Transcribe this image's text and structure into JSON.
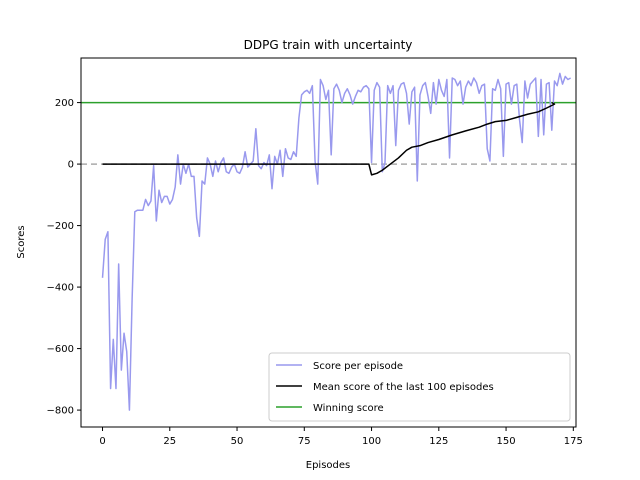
{
  "chart_data": {
    "type": "line",
    "title": "DDPG train with uncertainty",
    "xlabel": "Episodes",
    "ylabel": "Scores",
    "xlim": [
      -8,
      176
    ],
    "ylim": [
      -855,
      345
    ],
    "xticks": [
      0,
      25,
      50,
      75,
      100,
      125,
      150,
      175
    ],
    "xtick_labels": [
      "0",
      "25",
      "50",
      "75",
      "100",
      "125",
      "150",
      "175"
    ],
    "yticks": [
      -800,
      -600,
      -400,
      -200,
      0,
      200
    ],
    "ytick_labels": [
      "−800",
      "−600",
      "−400",
      "−200",
      "0",
      "200"
    ],
    "grid": false,
    "legend_position": "lower-right",
    "series": [
      {
        "name": "Score per episode",
        "color": "#9999ee",
        "x_start": 0,
        "values": [
          -370,
          -245,
          -220,
          -730,
          -570,
          -730,
          -325,
          -670,
          -550,
          -610,
          -800,
          -440,
          -155,
          -150,
          -150,
          -150,
          -115,
          -135,
          -120,
          -5,
          -185,
          -85,
          -125,
          -105,
          -105,
          -130,
          -115,
          -75,
          30,
          -65,
          0,
          -30,
          0,
          -40,
          -40,
          -175,
          -235,
          -55,
          -65,
          20,
          0,
          -40,
          10,
          -25,
          5,
          20,
          -25,
          -30,
          -10,
          0,
          -25,
          -30,
          -10,
          40,
          -10,
          0,
          10,
          115,
          -5,
          -15,
          5,
          -5,
          30,
          -80,
          25,
          0,
          45,
          -40,
          50,
          20,
          15,
          40,
          25,
          150,
          225,
          235,
          240,
          230,
          255,
          10,
          -65,
          275,
          255,
          210,
          240,
          30,
          245,
          260,
          240,
          200,
          230,
          245,
          225,
          195,
          220,
          240,
          235,
          250,
          255,
          245,
          5,
          240,
          265,
          250,
          -25,
          5,
          255,
          230,
          255,
          60,
          240,
          260,
          265,
          230,
          130,
          235,
          250,
          -55,
          225,
          255,
          265,
          220,
          165,
          265,
          195,
          275,
          240,
          220,
          275,
          20,
          280,
          275,
          255,
          270,
          195,
          250,
          270,
          255,
          280,
          265,
          230,
          255,
          260,
          50,
          10,
          245,
          240,
          275,
          245,
          25,
          260,
          265,
          195,
          255,
          260,
          145,
          70,
          270,
          215,
          260,
          270,
          280,
          90,
          275,
          95,
          260,
          265,
          110,
          270,
          255,
          295,
          260,
          285,
          275,
          280
        ]
      },
      {
        "name": "Mean score of the last 100 episodes",
        "color": "#000000",
        "points": [
          [
            0,
            0
          ],
          [
            99,
            0
          ],
          [
            100,
            -35
          ],
          [
            102,
            -30
          ],
          [
            104,
            -20
          ],
          [
            107,
            0
          ],
          [
            110,
            20
          ],
          [
            113,
            45
          ],
          [
            115,
            55
          ],
          [
            118,
            60
          ],
          [
            121,
            70
          ],
          [
            125,
            80
          ],
          [
            130,
            95
          ],
          [
            135,
            108
          ],
          [
            140,
            120
          ],
          [
            143,
            130
          ],
          [
            146,
            138
          ],
          [
            150,
            142
          ],
          [
            154,
            152
          ],
          [
            158,
            162
          ],
          [
            162,
            170
          ],
          [
            165,
            182
          ],
          [
            168,
            195
          ],
          [
            167,
            200
          ]
        ]
      },
      {
        "name": "Winning score",
        "color": "#2ca02c",
        "constant": 200
      },
      {
        "name": "zero reference",
        "color": "#aaaaaa",
        "constant": 0,
        "dashed": true
      }
    ],
    "legend_entries": [
      "Score per episode",
      "Mean score of the last 100 episodes",
      "Winning score"
    ]
  }
}
